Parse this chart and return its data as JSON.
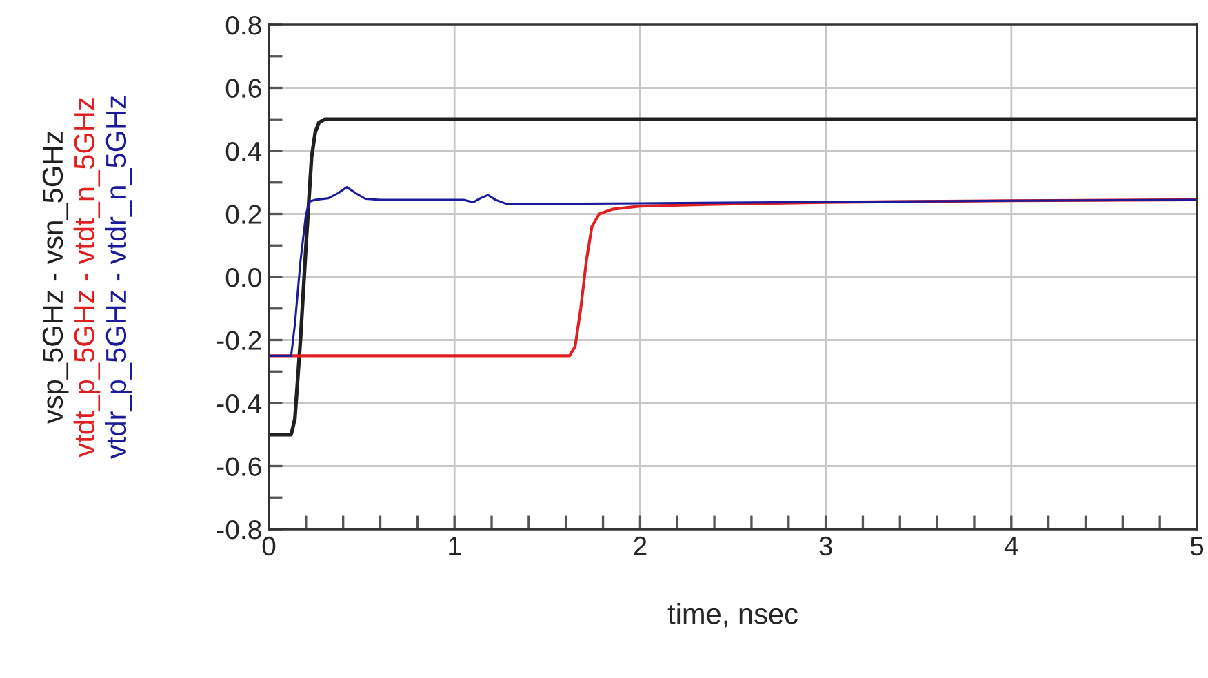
{
  "chart_data": {
    "type": "line",
    "xlabel": "time, nsec",
    "xlim": [
      0,
      5
    ],
    "ylim": [
      -0.8,
      0.8
    ],
    "xticks": [
      0,
      {
        "value": 0.2,
        "label": null
      },
      {
        "value": 0.4,
        "label": null
      },
      {
        "value": 0.6,
        "label": null
      },
      {
        "value": 0.8,
        "label": null
      },
      1,
      {
        "value": 1.2,
        "label": null
      },
      {
        "value": 1.4,
        "label": null
      },
      {
        "value": 1.6,
        "label": null
      },
      {
        "value": 1.8,
        "label": null
      },
      2,
      {
        "value": 2.2,
        "label": null
      },
      {
        "value": 2.4,
        "label": null
      },
      {
        "value": 2.6,
        "label": null
      },
      {
        "value": 2.8,
        "label": null
      },
      3,
      {
        "value": 3.2,
        "label": null
      },
      {
        "value": 3.4,
        "label": null
      },
      {
        "value": 3.6,
        "label": null
      },
      {
        "value": 3.8,
        "label": null
      },
      4,
      {
        "value": 4.2,
        "label": null
      },
      {
        "value": 4.4,
        "label": null
      },
      {
        "value": 4.6,
        "label": null
      },
      {
        "value": 4.8,
        "label": null
      },
      5
    ],
    "yticks": [
      {
        "value": -0.8,
        "label": "-0.8"
      },
      {
        "value": -0.7,
        "label": null
      },
      {
        "value": -0.6,
        "label": "-0.6"
      },
      {
        "value": -0.5,
        "label": null
      },
      {
        "value": -0.4,
        "label": "-0.4"
      },
      {
        "value": -0.3,
        "label": null
      },
      {
        "value": -0.2,
        "label": "-0.2"
      },
      {
        "value": -0.1,
        "label": null
      },
      {
        "value": 0.0,
        "label": "0.0"
      },
      {
        "value": 0.1,
        "label": null
      },
      {
        "value": 0.2,
        "label": "0.2"
      },
      {
        "value": 0.3,
        "label": null
      },
      {
        "value": 0.4,
        "label": "0.4"
      },
      {
        "value": 0.5,
        "label": null
      },
      {
        "value": 0.6,
        "label": "0.6"
      },
      {
        "value": 0.7,
        "label": null
      },
      {
        "value": 0.8,
        "label": "0.8"
      }
    ],
    "grid": true,
    "marker": "none",
    "line_style": "solid",
    "series": [
      {
        "name": "vsp_5GHz - vsn_5GHz",
        "color": "#202020",
        "x": [
          0,
          0.12,
          0.14,
          0.17,
          0.2,
          0.23,
          0.25,
          0.27,
          0.3,
          5
        ],
        "values": [
          -0.5,
          -0.5,
          -0.45,
          -0.2,
          0.1,
          0.38,
          0.46,
          0.49,
          0.5,
          0.5
        ]
      },
      {
        "name": "vtdt_p_5GHz - vtdt_n_5GHz",
        "color": "#e02020",
        "x": [
          0,
          1.62,
          1.65,
          1.68,
          1.71,
          1.74,
          1.78,
          1.85,
          2.0,
          2.5,
          3.0,
          4.0,
          5.0
        ],
        "values": [
          -0.25,
          -0.25,
          -0.22,
          -0.1,
          0.05,
          0.16,
          0.2,
          0.215,
          0.225,
          0.232,
          0.237,
          0.242,
          0.245
        ]
      },
      {
        "name": "vtdr_p_5GHz - vtdr_n_5GHz",
        "color": "#1a1a9a",
        "x": [
          0,
          0.12,
          0.14,
          0.17,
          0.2,
          0.22,
          0.25,
          0.32,
          0.37,
          0.42,
          0.47,
          0.52,
          0.6,
          1.05,
          1.1,
          1.14,
          1.18,
          1.22,
          1.28,
          1.5,
          2.0,
          3.0,
          4.0,
          5.0
        ],
        "values": [
          -0.25,
          -0.25,
          -0.15,
          0.05,
          0.2,
          0.24,
          0.245,
          0.25,
          0.265,
          0.285,
          0.265,
          0.248,
          0.245,
          0.245,
          0.237,
          0.25,
          0.26,
          0.245,
          0.232,
          0.232,
          0.234,
          0.238,
          0.242,
          0.245
        ]
      }
    ]
  }
}
